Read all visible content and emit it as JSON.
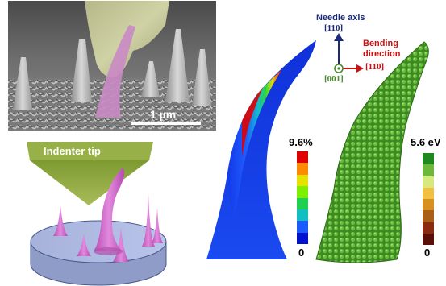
{
  "sem": {
    "scale_bar_label": "1 µm"
  },
  "indenter": {
    "tip_label": "Indenter tip"
  },
  "axes": {
    "needle_axis_label": "Needle axis",
    "needle_axis_direction": "[110]",
    "bending_label_line1": "Bending",
    "bending_label_line2": "direction",
    "bending_direction": "[11̄0]",
    "out_of_plane_direction": "[001]"
  },
  "strain_colorbar": {
    "max_label": "9.6%",
    "min_label": "0",
    "colors": [
      "#e00000",
      "#ff8a00",
      "#e8e000",
      "#7cf000",
      "#20d050",
      "#10c0c0",
      "#1a5aff",
      "#0010d0"
    ]
  },
  "energy_colorbar": {
    "max_label": "5.6 eV",
    "min_label": "0",
    "colors": [
      "#1e8a1e",
      "#6db83a",
      "#d8e880",
      "#f0c040",
      "#d89020",
      "#a86018",
      "#8a2a10",
      "#5a1008"
    ]
  },
  "colors": {
    "needle_axis_arrow": "#1a2a7a",
    "bending_arrow": "#cc1111",
    "out_of_plane": "#4a8a2a",
    "needle_pink": "#d070c8",
    "substrate_blue": "#a8b8e0",
    "indenter_green": "#8aa83a"
  }
}
